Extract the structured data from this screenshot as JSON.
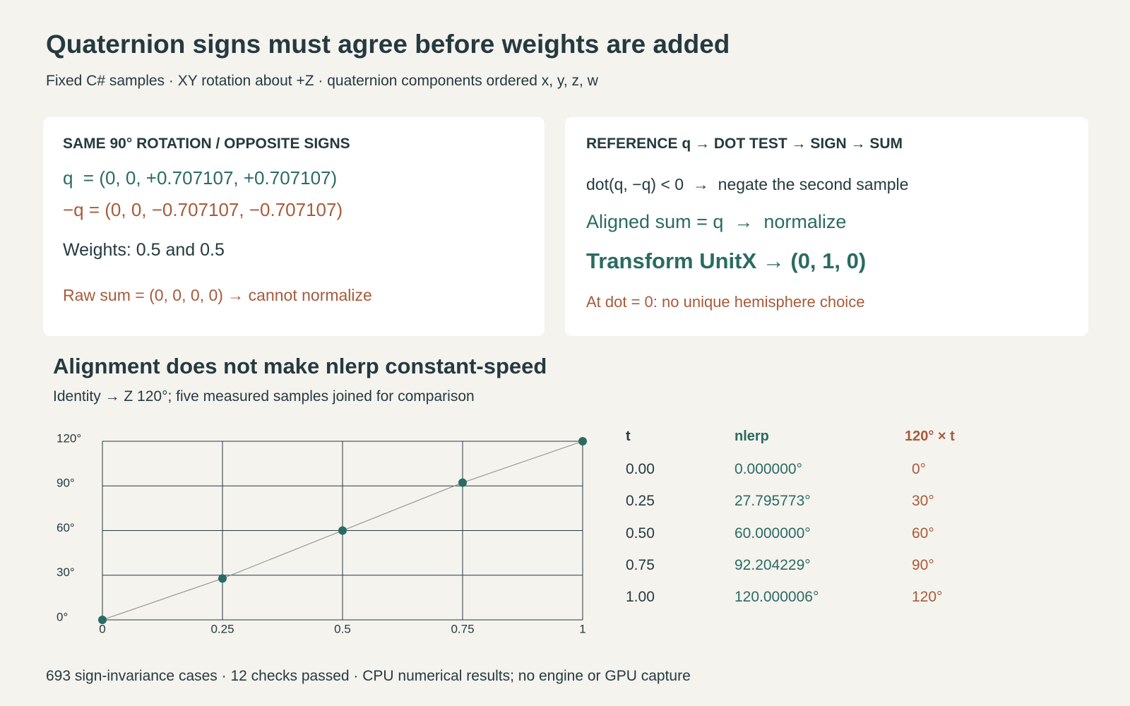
{
  "header": {
    "title": "Quaternion signs must agree before weights are added",
    "subtitle": "Fixed C# samples · XY rotation about +Z · quaternion components ordered x, y, z, w"
  },
  "cards": [
    {
      "heading": "SAME 90° ROTATION / OPPOSITE SIGNS",
      "lines": [
        "q  = (0, 0, +0.707107, +0.707107)",
        "−q = (0, 0, −0.707107, −0.707107)",
        "Weights: 0.5 and 0.5",
        "Raw sum = (0, 0, 0, 0) → cannot normalize"
      ]
    },
    {
      "heading": "REFERENCE q → DOT TEST → SIGN → SUM",
      "lines": [
        "dot(q, −q) < 0  →  negate the second sample",
        "Aligned sum = q  →  normalize",
        "Transform UnitX → (0, 1, 0)",
        "At dot = 0: no unique hemisphere choice"
      ]
    }
  ],
  "chart_section": {
    "title": "Alignment does not make nlerp constant-speed",
    "subtitle": "Identity → Z 120°; five measured samples joined for comparison"
  },
  "chart_data": {
    "type": "line",
    "x": [
      0,
      0.25,
      0.5,
      0.75,
      1
    ],
    "values": [
      0,
      27.795773,
      60,
      92.204229,
      120.000006
    ],
    "color": "#2a6b62",
    "line_color": "#8a8a8a",
    "grid": true,
    "xlim": [
      0,
      1
    ],
    "xticks": [
      0,
      0.25,
      0.5,
      0.75,
      1
    ],
    "ylim": [
      0,
      120
    ],
    "yticks": [
      {
        "value": 0,
        "label": "0°"
      },
      {
        "value": 30,
        "label": "30°"
      },
      {
        "value": 60,
        "label": "60°"
      },
      {
        "value": 90,
        "label": "90°"
      },
      {
        "value": 120,
        "label": "120°"
      }
    ]
  },
  "table": {
    "header": [
      "t",
      "nlerp",
      "120° × t"
    ],
    "rows": [
      [
        "0.00",
        "0.000000°",
        "0°"
      ],
      [
        "0.25",
        "27.795773°",
        "30°"
      ],
      [
        "0.50",
        "60.000000°",
        "60°"
      ],
      [
        "0.75",
        "92.204229°",
        "90°"
      ],
      [
        "1.00",
        "120.000006°",
        "120°"
      ]
    ]
  },
  "footer": "693 sign-invariance cases · 12 checks passed · CPU numerical results; no engine or GPU capture"
}
